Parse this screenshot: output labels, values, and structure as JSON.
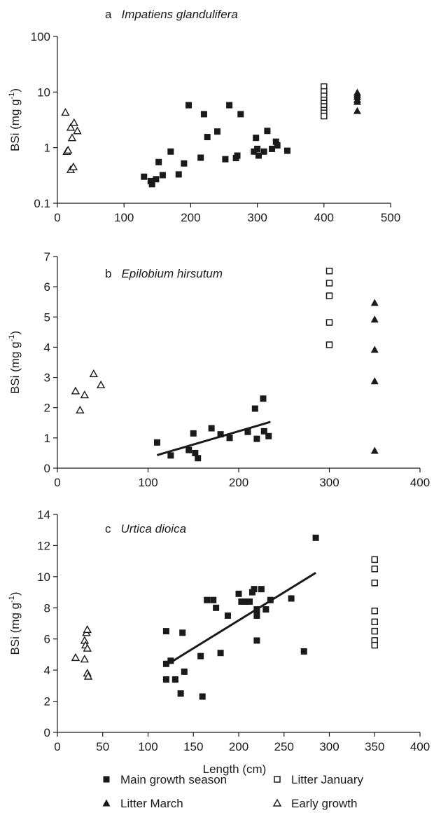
{
  "legend": [
    {
      "key": "main",
      "label": "Main growth season",
      "marker": "filled-square"
    },
    {
      "key": "janu",
      "label": "Litter January",
      "marker": "open-square"
    },
    {
      "key": "march",
      "label": "Litter March",
      "marker": "filled-triangle"
    },
    {
      "key": "early",
      "label": "Early growth",
      "marker": "open-triangle"
    }
  ],
  "colors": {
    "marker": "#1a1a1a",
    "axis": "#1a1a1a",
    "background": "#ffffff"
  },
  "chart_data": [
    {
      "type": "scatter",
      "panel_letter": "a",
      "title": "Impatiens glandulifera",
      "ylabel": "BSi (mg g",
      "ylabel_sup": "-1",
      "ylabel_close": ")",
      "xlabel": "",
      "xlim": [
        0,
        500
      ],
      "ylim": [
        0.1,
        100
      ],
      "yscale": "log",
      "xticks": [
        0,
        100,
        200,
        300,
        400,
        500
      ],
      "yticks": [
        0.1,
        1,
        10,
        100
      ],
      "xtick_labels": [
        "0",
        "100",
        "200",
        "300",
        "400",
        "500"
      ],
      "ytick_labels": [
        "0.1",
        "1",
        "10",
        "100"
      ],
      "series": [
        {
          "key": "early",
          "name": "Early growth",
          "points": [
            [
              12,
              4.3
            ],
            [
              20,
              2.3
            ],
            [
              25,
              2.8
            ],
            [
              30,
              2.0
            ],
            [
              22,
              1.5
            ],
            [
              14,
              0.85
            ],
            [
              16,
              0.9
            ],
            [
              20,
              0.4
            ],
            [
              24,
              0.45
            ]
          ]
        },
        {
          "key": "main",
          "name": "Main growth season",
          "points": [
            [
              130,
              0.3
            ],
            [
              140,
              0.25
            ],
            [
              142,
              0.22
            ],
            [
              148,
              0.27
            ],
            [
              152,
              0.55
            ],
            [
              158,
              0.32
            ],
            [
              170,
              0.85
            ],
            [
              182,
              0.33
            ],
            [
              190,
              0.52
            ],
            [
              197,
              5.8
            ],
            [
              215,
              0.66
            ],
            [
              220,
              4.0
            ],
            [
              225,
              1.55
            ],
            [
              240,
              1.95
            ],
            [
              252,
              0.62
            ],
            [
              258,
              5.8
            ],
            [
              268,
              0.65
            ],
            [
              270,
              0.72
            ],
            [
              275,
              4.0
            ],
            [
              295,
              0.85
            ],
            [
              298,
              1.5
            ],
            [
              300,
              0.95
            ],
            [
              302,
              0.72
            ],
            [
              310,
              0.85
            ],
            [
              315,
              2.0
            ],
            [
              322,
              0.95
            ],
            [
              328,
              1.28
            ],
            [
              330,
              1.1
            ],
            [
              345,
              0.88
            ]
          ]
        },
        {
          "key": "janu",
          "name": "Litter January",
          "points": [
            [
              400,
              12.5
            ],
            [
              400,
              10.2
            ],
            [
              400,
              8.5
            ],
            [
              400,
              7.2
            ],
            [
              400,
              6.3
            ],
            [
              400,
              5.5
            ],
            [
              400,
              4.7
            ],
            [
              400,
              4.2
            ],
            [
              400,
              3.7
            ]
          ]
        },
        {
          "key": "march",
          "name": "Litter March",
          "points": [
            [
              450,
              9.8
            ],
            [
              450,
              9.0
            ],
            [
              450,
              8.2
            ],
            [
              450,
              7.3
            ],
            [
              450,
              6.7
            ],
            [
              450,
              4.6
            ]
          ]
        }
      ]
    },
    {
      "type": "scatter",
      "panel_letter": "b",
      "title": "Epilobium hirsutum",
      "ylabel": "BSi (mg g",
      "ylabel_sup": "-1",
      "ylabel_close": ")",
      "xlabel": "",
      "xlim": [
        0,
        400
      ],
      "ylim": [
        0,
        7
      ],
      "yscale": "linear",
      "xticks": [
        0,
        100,
        200,
        300,
        400
      ],
      "yticks": [
        0,
        1,
        2,
        3,
        4,
        5,
        6,
        7
      ],
      "xtick_labels": [
        "0",
        "100",
        "200",
        "300",
        "400"
      ],
      "ytick_labels": [
        "0",
        "1",
        "2",
        "3",
        "4",
        "5",
        "6",
        "7"
      ],
      "trendline": {
        "x": [
          110,
          235
        ],
        "y": [
          0.43,
          1.53
        ]
      },
      "series": [
        {
          "key": "early",
          "name": "Early growth",
          "points": [
            [
              20,
              2.55
            ],
            [
              25,
              1.92
            ],
            [
              30,
              2.42
            ],
            [
              40,
              3.12
            ],
            [
              48,
              2.75
            ]
          ]
        },
        {
          "key": "main",
          "name": "Main growth season",
          "points": [
            [
              110,
              0.85
            ],
            [
              125,
              0.42
            ],
            [
              145,
              0.6
            ],
            [
              150,
              1.15
            ],
            [
              152,
              0.5
            ],
            [
              155,
              0.33
            ],
            [
              170,
              1.32
            ],
            [
              180,
              1.12
            ],
            [
              190,
              1.0
            ],
            [
              210,
              1.2
            ],
            [
              218,
              1.97
            ],
            [
              220,
              0.97
            ],
            [
              227,
              2.3
            ],
            [
              228,
              1.22
            ],
            [
              233,
              1.06
            ]
          ]
        },
        {
          "key": "janu",
          "name": "Litter January",
          "points": [
            [
              300,
              6.52
            ],
            [
              300,
              6.12
            ],
            [
              300,
              5.7
            ],
            [
              300,
              4.82
            ],
            [
              300,
              4.08
            ]
          ]
        },
        {
          "key": "march",
          "name": "Litter March",
          "points": [
            [
              350,
              5.47
            ],
            [
              350,
              4.92
            ],
            [
              350,
              3.92
            ],
            [
              350,
              2.88
            ],
            [
              350,
              0.58
            ]
          ]
        }
      ]
    },
    {
      "type": "scatter",
      "panel_letter": "c",
      "title": "Urtica dioica",
      "ylabel": "BSi (mg g",
      "ylabel_sup": "-1",
      "ylabel_close": ")",
      "xlabel": "Length (cm)",
      "xlim": [
        0,
        400
      ],
      "ylim": [
        0,
        14
      ],
      "yscale": "linear",
      "xticks": [
        0,
        50,
        100,
        150,
        200,
        250,
        300,
        350,
        400
      ],
      "yticks": [
        0,
        2,
        4,
        6,
        8,
        10,
        12,
        14
      ],
      "xtick_labels": [
        "0",
        "50",
        "100",
        "150",
        "200",
        "250",
        "300",
        "350",
        "400"
      ],
      "ytick_labels": [
        "0",
        "2",
        "4",
        "6",
        "8",
        "10",
        "12",
        "14"
      ],
      "trendline": {
        "x": [
          125,
          285
        ],
        "y": [
          4.5,
          10.25
        ]
      },
      "series": [
        {
          "key": "early",
          "name": "Early growth",
          "points": [
            [
              20,
              4.8
            ],
            [
              30,
              4.7
            ],
            [
              30,
              5.9
            ],
            [
              31,
              5.6
            ],
            [
              32,
              6.4
            ],
            [
              33,
              6.6
            ],
            [
              33,
              5.4
            ],
            [
              33,
              3.8
            ],
            [
              34,
              3.6
            ]
          ]
        },
        {
          "key": "main",
          "name": "Main growth season",
          "points": [
            [
              120,
              6.5
            ],
            [
              120,
              4.4
            ],
            [
              120,
              3.4
            ],
            [
              125,
              4.6
            ],
            [
              130,
              3.4
            ],
            [
              136,
              2.5
            ],
            [
              138,
              6.4
            ],
            [
              140,
              3.9
            ],
            [
              158,
              4.9
            ],
            [
              160,
              2.3
            ],
            [
              165,
              8.5
            ],
            [
              172,
              8.5
            ],
            [
              175,
              8.0
            ],
            [
              180,
              5.1
            ],
            [
              188,
              7.5
            ],
            [
              200,
              8.9
            ],
            [
              203,
              8.4
            ],
            [
              207,
              8.4
            ],
            [
              212,
              8.4
            ],
            [
              215,
              9.0
            ],
            [
              217,
              9.2
            ],
            [
              220,
              7.5
            ],
            [
              220,
              7.9
            ],
            [
              220,
              5.9
            ],
            [
              225,
              9.2
            ],
            [
              230,
              7.9
            ],
            [
              235,
              8.5
            ],
            [
              258,
              8.6
            ],
            [
              272,
              5.2
            ],
            [
              285,
              12.5
            ]
          ]
        },
        {
          "key": "janu",
          "name": "Litter January",
          "points": [
            [
              350,
              11.1
            ],
            [
              350,
              10.5
            ],
            [
              350,
              9.6
            ],
            [
              350,
              7.8
            ],
            [
              350,
              7.1
            ],
            [
              350,
              6.5
            ],
            [
              350,
              5.9
            ],
            [
              350,
              5.6
            ]
          ]
        }
      ]
    }
  ]
}
